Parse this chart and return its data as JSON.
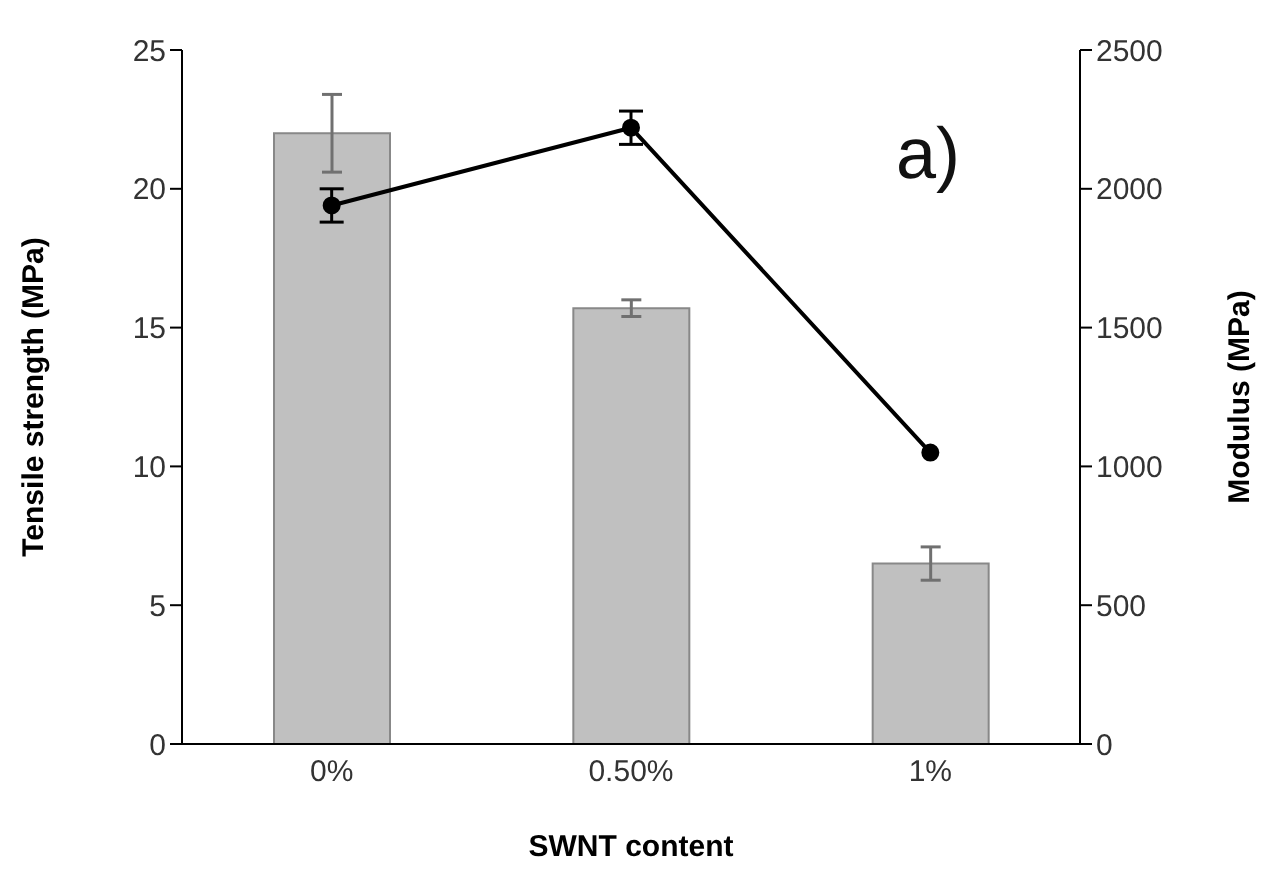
{
  "chart_data": {
    "type": "bar",
    "xlabel": "SWNT content",
    "ylabel": "Tensile strength (MPa)",
    "y2label": "Modulus (MPa)",
    "annotations": [
      "a)"
    ],
    "categories": [
      "0%",
      "0.50%",
      "1%"
    ],
    "series": [
      {
        "color": "#c0c0c0",
        "values": [
          22.0,
          15.7,
          6.5
        ],
        "errors": [
          1.4,
          0.3,
          0.6
        ]
      },
      {
        "type": "line",
        "axis": "y2",
        "color": "#000000",
        "values": [
          1940,
          2220,
          1050
        ],
        "errors": [
          60,
          60,
          null
        ]
      }
    ],
    "ylim": [
      0,
      25
    ],
    "yticks": [
      0,
      5,
      10,
      15,
      20,
      25
    ],
    "y2lim": [
      0,
      2500
    ],
    "y2ticks": [
      0,
      500,
      1000,
      1500,
      2000,
      2500
    ],
    "marker": "circle"
  }
}
